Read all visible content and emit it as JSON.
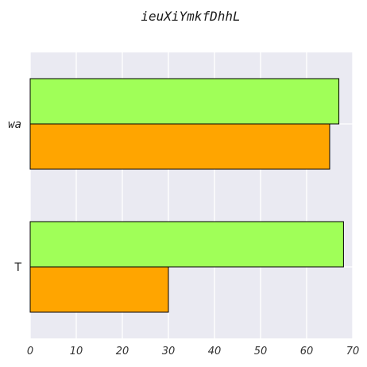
{
  "chart_data": {
    "type": "bar",
    "orientation": "horizontal",
    "title": "ieuXiYmkfDhhL",
    "categories": [
      "wa",
      "T"
    ],
    "series": [
      {
        "color": "#a0ff58",
        "values": [
          67,
          68
        ]
      },
      {
        "color": "#ffa500",
        "values": [
          65,
          30
        ]
      }
    ],
    "xlim": [
      0,
      70
    ],
    "xticks": [
      0,
      10,
      20,
      30,
      40,
      50,
      60,
      70
    ],
    "xlabel": "",
    "ylabel": "",
    "grid": true,
    "background": "#eaeaf2"
  }
}
